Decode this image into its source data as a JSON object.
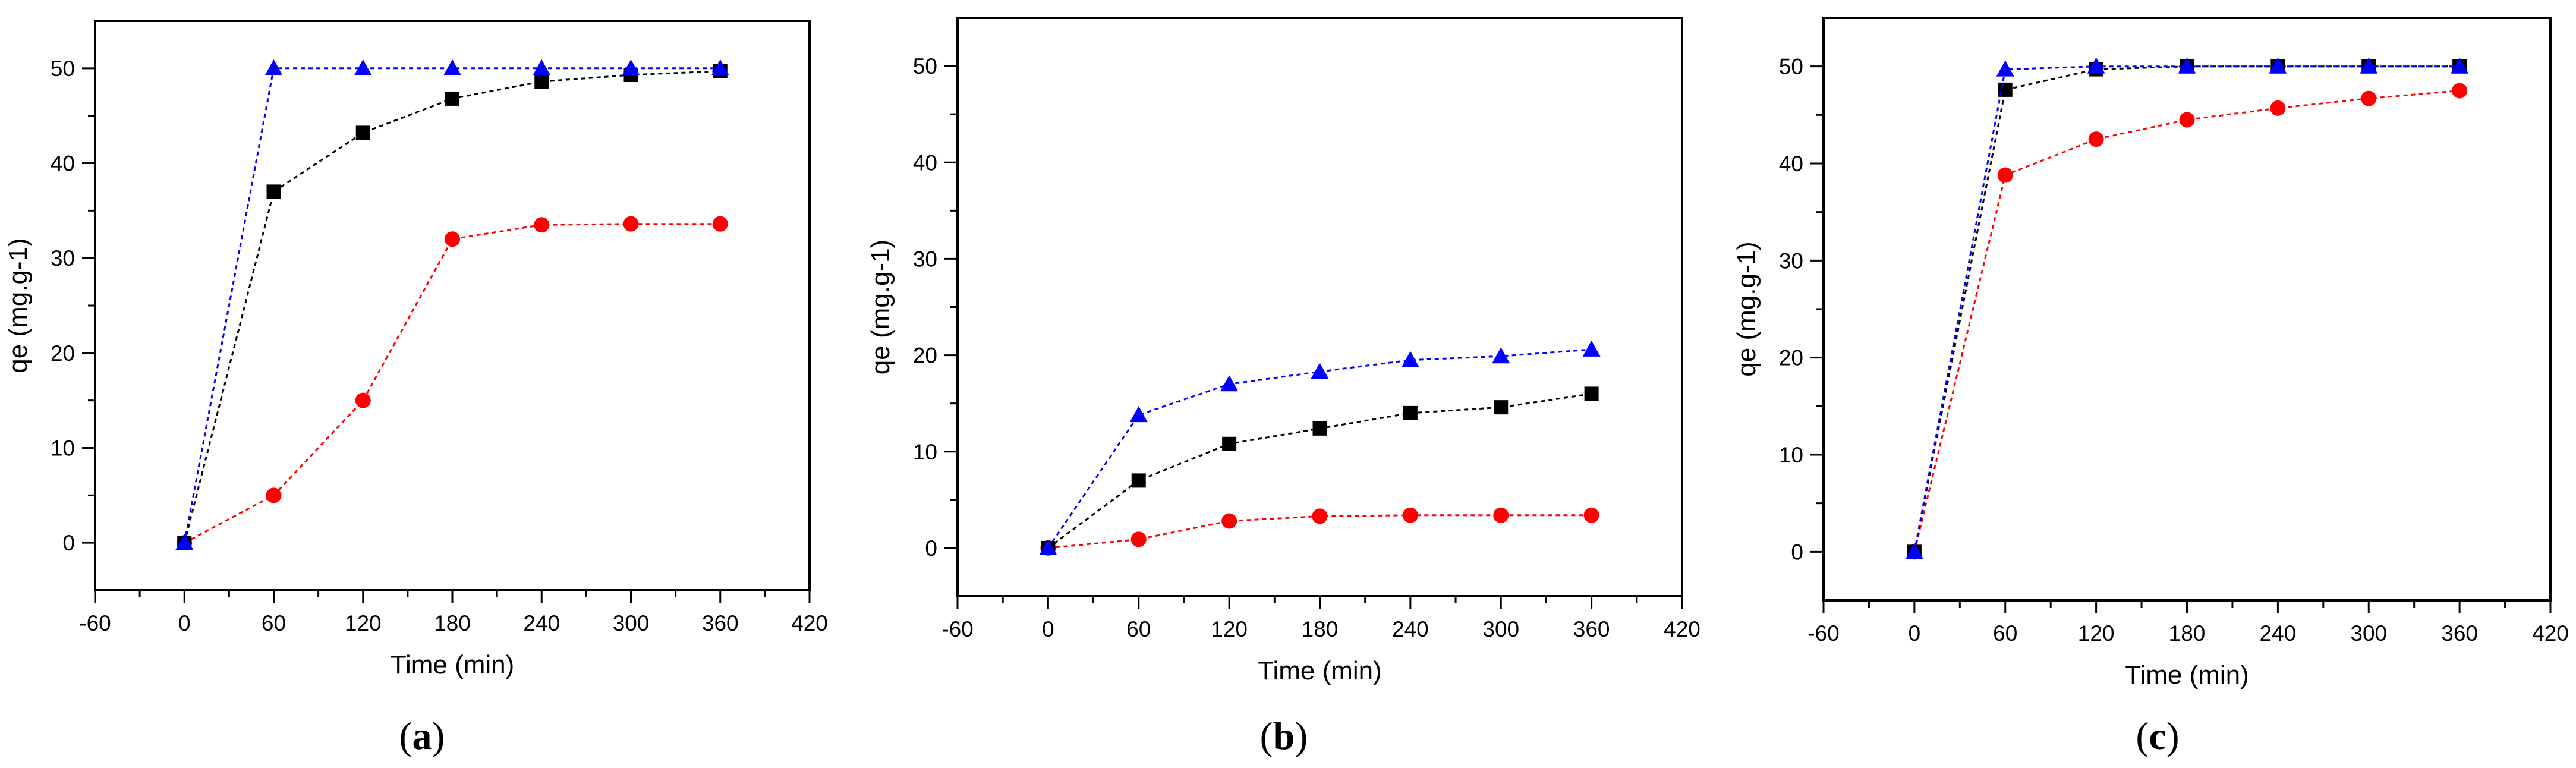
{
  "chart_data": [
    {
      "type": "line",
      "panel": "a",
      "caption": "(a)",
      "xlabel": "Time (min)",
      "ylabel": "qe (mg.g-1)",
      "xlim": [
        -60,
        420
      ],
      "ylim": [
        -5,
        55
      ],
      "xticks": [
        -60,
        0,
        60,
        120,
        180,
        240,
        300,
        360,
        420
      ],
      "xtick_labels": [
        "-60",
        "0",
        "60",
        "120",
        "180",
        "240",
        "300",
        "360",
        "420"
      ],
      "yticks": [
        0,
        10,
        20,
        30,
        40,
        50
      ],
      "ytick_labels": [
        "0",
        "10",
        "20",
        "30",
        "40",
        "50"
      ],
      "x": [
        0,
        60,
        120,
        180,
        240,
        300,
        360
      ],
      "series": [
        {
          "name": "series-red-circle",
          "color": "#ff0000",
          "marker": "circle",
          "values": [
            0,
            5,
            15,
            32,
            33.5,
            33.6,
            33.6
          ]
        },
        {
          "name": "series-black-square",
          "color": "#000000",
          "marker": "square",
          "values": [
            0,
            37,
            43.2,
            46.8,
            48.6,
            49.3,
            49.7
          ]
        },
        {
          "name": "series-blue-triangle",
          "color": "#0000ff",
          "marker": "triangle",
          "values": [
            0,
            50,
            50,
            50,
            50,
            50,
            50
          ]
        }
      ]
    },
    {
      "type": "line",
      "panel": "b",
      "caption": "(b)",
      "xlabel": "Time (min)",
      "ylabel": "qe (mg.g-1)",
      "xlim": [
        -60,
        420
      ],
      "ylim": [
        -5,
        55
      ],
      "xticks": [
        -60,
        0,
        60,
        120,
        180,
        240,
        300,
        360,
        420
      ],
      "xtick_labels": [
        "-60",
        "0",
        "60",
        "120",
        "180",
        "240",
        "300",
        "360",
        "420"
      ],
      "yticks": [
        0,
        10,
        20,
        30,
        40,
        50
      ],
      "ytick_labels": [
        "0",
        "10",
        "20",
        "30",
        "40",
        "50"
      ],
      "x": [
        0,
        60,
        120,
        180,
        240,
        300,
        360
      ],
      "series": [
        {
          "name": "series-red-circle",
          "color": "#ff0000",
          "marker": "circle",
          "values": [
            0,
            0.9,
            2.8,
            3.3,
            3.4,
            3.4,
            3.4
          ]
        },
        {
          "name": "series-black-square",
          "color": "#000000",
          "marker": "square",
          "values": [
            0,
            7,
            10.8,
            12.4,
            14,
            14.6,
            16
          ]
        },
        {
          "name": "series-blue-triangle",
          "color": "#0000ff",
          "marker": "triangle",
          "values": [
            0,
            13.8,
            17,
            18.3,
            19.5,
            19.9,
            20.6
          ]
        }
      ]
    },
    {
      "type": "line",
      "panel": "c",
      "caption": "(c)",
      "xlabel": "Time (min)",
      "ylabel": "qe (mg.g-1)",
      "xlim": [
        -60,
        420
      ],
      "ylim": [
        -5,
        55
      ],
      "xticks": [
        -60,
        0,
        60,
        120,
        180,
        240,
        300,
        360,
        420
      ],
      "xtick_labels": [
        "-60",
        "0",
        "60",
        "120",
        "180",
        "240",
        "300",
        "360",
        "420"
      ],
      "yticks": [
        0,
        10,
        20,
        30,
        40,
        50
      ],
      "ytick_labels": [
        "0",
        "10",
        "20",
        "30",
        "40",
        "50"
      ],
      "x": [
        0,
        60,
        120,
        180,
        240,
        300,
        360
      ],
      "series": [
        {
          "name": "series-red-circle",
          "color": "#ff0000",
          "marker": "circle",
          "values": [
            0,
            38.8,
            42.5,
            44.5,
            45.7,
            46.7,
            47.5
          ]
        },
        {
          "name": "series-black-square",
          "color": "#000000",
          "marker": "square",
          "values": [
            0,
            47.6,
            49.7,
            50,
            50,
            50,
            50
          ]
        },
        {
          "name": "series-blue-triangle",
          "color": "#0000ff",
          "marker": "triangle",
          "values": [
            0,
            49.7,
            50,
            50,
            50,
            50,
            50
          ]
        }
      ]
    }
  ]
}
